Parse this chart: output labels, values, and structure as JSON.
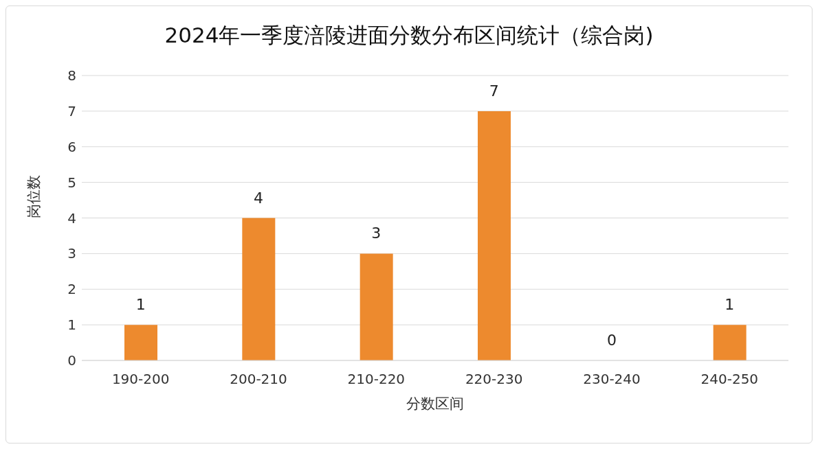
{
  "chart_data": {
    "type": "bar",
    "title": "2024年一季度涪陵进面分数分布区间统计（综合岗)",
    "xlabel": "分数区间",
    "ylabel": "岗位数",
    "categories": [
      "190-200",
      "200-210",
      "210-220",
      "220-230",
      "230-240",
      "240-250"
    ],
    "values": [
      1,
      4,
      3,
      7,
      0,
      1
    ],
    "color": "#ed8a2e",
    "ylim": [
      0,
      8
    ],
    "yticks": [
      0,
      1,
      2,
      3,
      4,
      5,
      6,
      7,
      8
    ],
    "grid": "y",
    "data_labels": true
  }
}
